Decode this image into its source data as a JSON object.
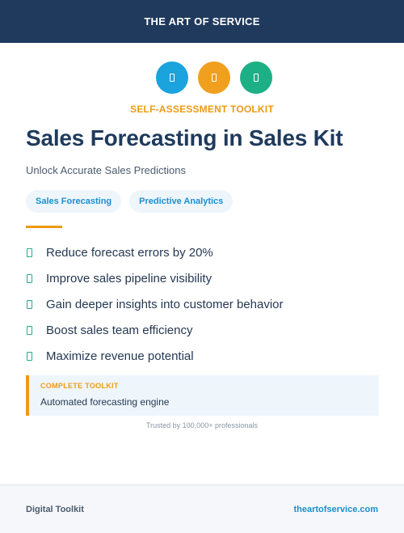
{
  "header": {
    "brand": "THE ART OF SERVICE"
  },
  "icons": [
    {
      "name": "document-icon",
      "color": "#1ba3de"
    },
    {
      "name": "document-icon",
      "color": "#f0a01e"
    },
    {
      "name": "document-icon",
      "color": "#1db086"
    }
  ],
  "hero": {
    "eyebrow": "SELF-ASSESSMENT TOOLKIT",
    "title": "Sales Forecasting in Sales Kit",
    "subtitle": "Unlock Accurate Sales Predictions",
    "tags": [
      "Sales Forecasting",
      "Predictive Analytics"
    ]
  },
  "benefits": [
    "Reduce forecast errors by 20%",
    "Improve sales pipeline visibility",
    "Gain deeper insights into customer behavior",
    "Boost sales team efficiency",
    "Maximize revenue potential"
  ],
  "callout": {
    "label": "COMPLETE TOOLKIT",
    "text": "Automated forecasting engine"
  },
  "trusted": "Trusted by 100,000+ professionals",
  "footer": {
    "left": "Digital Toolkit",
    "right": "theartofservice.com"
  },
  "colors": {
    "navy": "#1f3a5c",
    "accent_orange": "#ee9a14",
    "accent_blue": "#1ba3de",
    "accent_green": "#1db086"
  }
}
